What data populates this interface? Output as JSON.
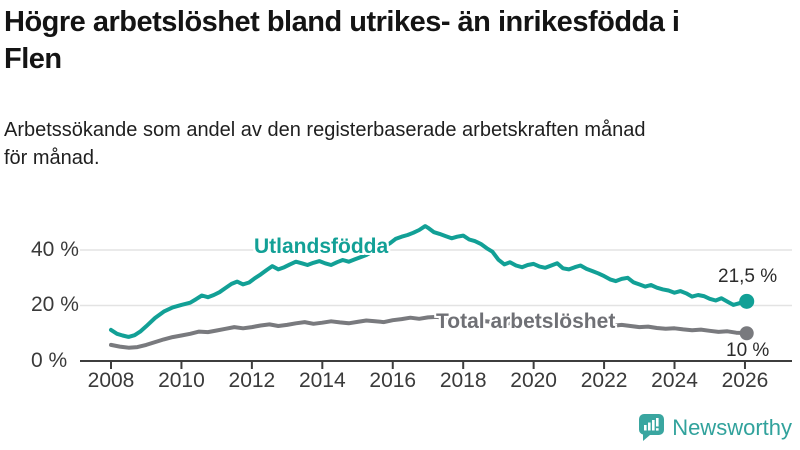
{
  "header": {
    "title": "Högre arbetslöshet bland utrikes- än inrikesfödda i Flen",
    "title_line1": "Högre arbetslöshet bland utrikes- än inrikesfödda i",
    "title_line2": "Flen",
    "subtitle": "Arbetssökande som andel av den registerbaserade arbetskraften månad för månad.",
    "subtitle_line1": "Arbetssökande som andel av den registerbaserade arbetskraften månad",
    "subtitle_line2": "för månad."
  },
  "footer": {
    "brand": "Newsworthy",
    "brand_color": "#31A29C",
    "brand_icon": "speech-bubble-bar-chart-icon",
    "brand_icon_color": "#3AA6A0"
  },
  "chart_data": {
    "type": "line",
    "title": "Högre arbetslöshet bland utrikes- än inrikesfödda i Flen",
    "subtitle": "Arbetssökande som andel av den registerbaserade arbetskraften månad för månad.",
    "grid": "horizontal",
    "legend_position": "inline-labels",
    "x_axis": {
      "range": [
        2007.2,
        2027.3
      ],
      "ticks": [
        2008,
        2010,
        2012,
        2014,
        2016,
        2018,
        2020,
        2022,
        2024,
        2026
      ]
    },
    "y_axis": {
      "unit": "%",
      "range": [
        0,
        52
      ],
      "tick_values": [
        0,
        20,
        40
      ],
      "tick_labels": [
        "0 %",
        "20 %",
        "40 %"
      ],
      "gridline_values": [
        20,
        40
      ]
    },
    "series": [
      {
        "name": "Utlandsfödda",
        "color": "#12A096",
        "end_label": "21,5 %",
        "end_value": 21.5,
        "points": [
          [
            2008.0,
            11.2
          ],
          [
            2008.17,
            9.8
          ],
          [
            2008.33,
            9.2
          ],
          [
            2008.5,
            8.7
          ],
          [
            2008.67,
            9.3
          ],
          [
            2008.83,
            10.6
          ],
          [
            2009.0,
            12.5
          ],
          [
            2009.25,
            15.5
          ],
          [
            2009.5,
            17.8
          ],
          [
            2009.75,
            19.3
          ],
          [
            2010.0,
            20.2
          ],
          [
            2010.25,
            21.0
          ],
          [
            2010.42,
            22.3
          ],
          [
            2010.58,
            23.6
          ],
          [
            2010.75,
            23.0
          ],
          [
            2010.92,
            23.8
          ],
          [
            2011.08,
            24.8
          ],
          [
            2011.25,
            26.3
          ],
          [
            2011.42,
            27.8
          ],
          [
            2011.58,
            28.6
          ],
          [
            2011.75,
            27.6
          ],
          [
            2011.92,
            28.3
          ],
          [
            2012.08,
            29.8
          ],
          [
            2012.25,
            31.2
          ],
          [
            2012.42,
            32.8
          ],
          [
            2012.58,
            34.2
          ],
          [
            2012.75,
            33.0
          ],
          [
            2012.92,
            33.8
          ],
          [
            2013.08,
            34.8
          ],
          [
            2013.25,
            35.8
          ],
          [
            2013.42,
            35.2
          ],
          [
            2013.58,
            34.6
          ],
          [
            2013.75,
            35.4
          ],
          [
            2013.92,
            36.0
          ],
          [
            2014.08,
            35.2
          ],
          [
            2014.25,
            34.6
          ],
          [
            2014.42,
            35.6
          ],
          [
            2014.58,
            36.4
          ],
          [
            2014.75,
            35.8
          ],
          [
            2014.92,
            36.6
          ],
          [
            2015.08,
            37.4
          ],
          [
            2015.25,
            38.2
          ],
          [
            2015.42,
            39.4
          ],
          [
            2015.58,
            40.6
          ],
          [
            2015.75,
            41.2
          ],
          [
            2015.92,
            42.4
          ],
          [
            2016.08,
            44.0
          ],
          [
            2016.25,
            44.8
          ],
          [
            2016.42,
            45.4
          ],
          [
            2016.58,
            46.2
          ],
          [
            2016.75,
            47.2
          ],
          [
            2016.92,
            48.6
          ],
          [
            2017.0,
            48.0
          ],
          [
            2017.17,
            46.4
          ],
          [
            2017.33,
            45.8
          ],
          [
            2017.5,
            45.0
          ],
          [
            2017.67,
            44.2
          ],
          [
            2017.83,
            44.8
          ],
          [
            2018.0,
            45.2
          ],
          [
            2018.17,
            43.8
          ],
          [
            2018.33,
            43.2
          ],
          [
            2018.5,
            42.2
          ],
          [
            2018.67,
            40.6
          ],
          [
            2018.83,
            39.4
          ],
          [
            2019.0,
            36.5
          ],
          [
            2019.17,
            34.8
          ],
          [
            2019.33,
            35.6
          ],
          [
            2019.5,
            34.4
          ],
          [
            2019.67,
            33.8
          ],
          [
            2019.83,
            34.6
          ],
          [
            2020.0,
            35.0
          ],
          [
            2020.17,
            34.0
          ],
          [
            2020.33,
            33.6
          ],
          [
            2020.5,
            34.4
          ],
          [
            2020.67,
            35.2
          ],
          [
            2020.83,
            33.4
          ],
          [
            2021.0,
            33.0
          ],
          [
            2021.17,
            33.8
          ],
          [
            2021.33,
            34.4
          ],
          [
            2021.5,
            33.2
          ],
          [
            2021.67,
            32.4
          ],
          [
            2021.83,
            31.6
          ],
          [
            2022.0,
            30.6
          ],
          [
            2022.17,
            29.4
          ],
          [
            2022.33,
            28.8
          ],
          [
            2022.5,
            29.6
          ],
          [
            2022.67,
            30.0
          ],
          [
            2022.83,
            28.4
          ],
          [
            2023.0,
            27.6
          ],
          [
            2023.17,
            26.8
          ],
          [
            2023.33,
            27.4
          ],
          [
            2023.5,
            26.4
          ],
          [
            2023.67,
            25.8
          ],
          [
            2023.83,
            25.4
          ],
          [
            2024.0,
            24.6
          ],
          [
            2024.17,
            25.2
          ],
          [
            2024.33,
            24.4
          ],
          [
            2024.5,
            23.2
          ],
          [
            2024.67,
            23.8
          ],
          [
            2024.83,
            23.4
          ],
          [
            2025.0,
            22.4
          ],
          [
            2025.17,
            21.8
          ],
          [
            2025.33,
            22.6
          ],
          [
            2025.5,
            21.4
          ],
          [
            2025.67,
            20.2
          ],
          [
            2025.83,
            20.8
          ],
          [
            2026.0,
            21.8
          ],
          [
            2026.05,
            21.5
          ]
        ]
      },
      {
        "name": "Total arbetslöshet",
        "color": "#797A7E",
        "end_label": "10 %",
        "end_value": 10,
        "points": [
          [
            2008.0,
            5.8
          ],
          [
            2008.25,
            5.2
          ],
          [
            2008.5,
            4.8
          ],
          [
            2008.75,
            5.0
          ],
          [
            2009.0,
            5.8
          ],
          [
            2009.25,
            6.8
          ],
          [
            2009.5,
            7.8
          ],
          [
            2009.75,
            8.6
          ],
          [
            2010.0,
            9.2
          ],
          [
            2010.25,
            9.8
          ],
          [
            2010.5,
            10.6
          ],
          [
            2010.75,
            10.4
          ],
          [
            2011.0,
            11.0
          ],
          [
            2011.25,
            11.6
          ],
          [
            2011.5,
            12.2
          ],
          [
            2011.75,
            11.8
          ],
          [
            2012.0,
            12.2
          ],
          [
            2012.25,
            12.8
          ],
          [
            2012.5,
            13.2
          ],
          [
            2012.75,
            12.6
          ],
          [
            2013.0,
            13.0
          ],
          [
            2013.25,
            13.6
          ],
          [
            2013.5,
            14.0
          ],
          [
            2013.75,
            13.4
          ],
          [
            2014.0,
            13.8
          ],
          [
            2014.25,
            14.3
          ],
          [
            2014.5,
            13.9
          ],
          [
            2014.75,
            13.6
          ],
          [
            2015.0,
            14.1
          ],
          [
            2015.25,
            14.6
          ],
          [
            2015.5,
            14.3
          ],
          [
            2015.75,
            14.0
          ],
          [
            2016.0,
            14.7
          ],
          [
            2016.25,
            15.1
          ],
          [
            2016.5,
            15.6
          ],
          [
            2016.75,
            15.2
          ],
          [
            2017.0,
            15.7
          ],
          [
            2017.25,
            15.9
          ],
          [
            2017.5,
            15.4
          ],
          [
            2017.75,
            15.1
          ],
          [
            2018.0,
            15.4
          ],
          [
            2018.25,
            14.9
          ],
          [
            2018.5,
            14.5
          ],
          [
            2018.75,
            14.2
          ],
          [
            2019.0,
            13.9
          ],
          [
            2019.25,
            13.6
          ],
          [
            2019.5,
            13.8
          ],
          [
            2019.75,
            13.5
          ],
          [
            2020.0,
            13.8
          ],
          [
            2020.25,
            14.4
          ],
          [
            2020.5,
            14.8
          ],
          [
            2020.75,
            14.4
          ],
          [
            2021.0,
            14.1
          ],
          [
            2021.25,
            13.8
          ],
          [
            2021.5,
            13.4
          ],
          [
            2021.75,
            13.1
          ],
          [
            2022.0,
            12.9
          ],
          [
            2022.25,
            12.7
          ],
          [
            2022.5,
            13.0
          ],
          [
            2022.75,
            12.6
          ],
          [
            2023.0,
            12.2
          ],
          [
            2023.25,
            12.4
          ],
          [
            2023.5,
            11.9
          ],
          [
            2023.75,
            11.6
          ],
          [
            2024.0,
            11.8
          ],
          [
            2024.25,
            11.4
          ],
          [
            2024.5,
            11.1
          ],
          [
            2024.75,
            11.3
          ],
          [
            2025.0,
            10.9
          ],
          [
            2025.25,
            10.5
          ],
          [
            2025.5,
            10.7
          ],
          [
            2025.75,
            10.2
          ],
          [
            2026.0,
            10.1
          ],
          [
            2026.05,
            10.0
          ]
        ]
      }
    ]
  }
}
